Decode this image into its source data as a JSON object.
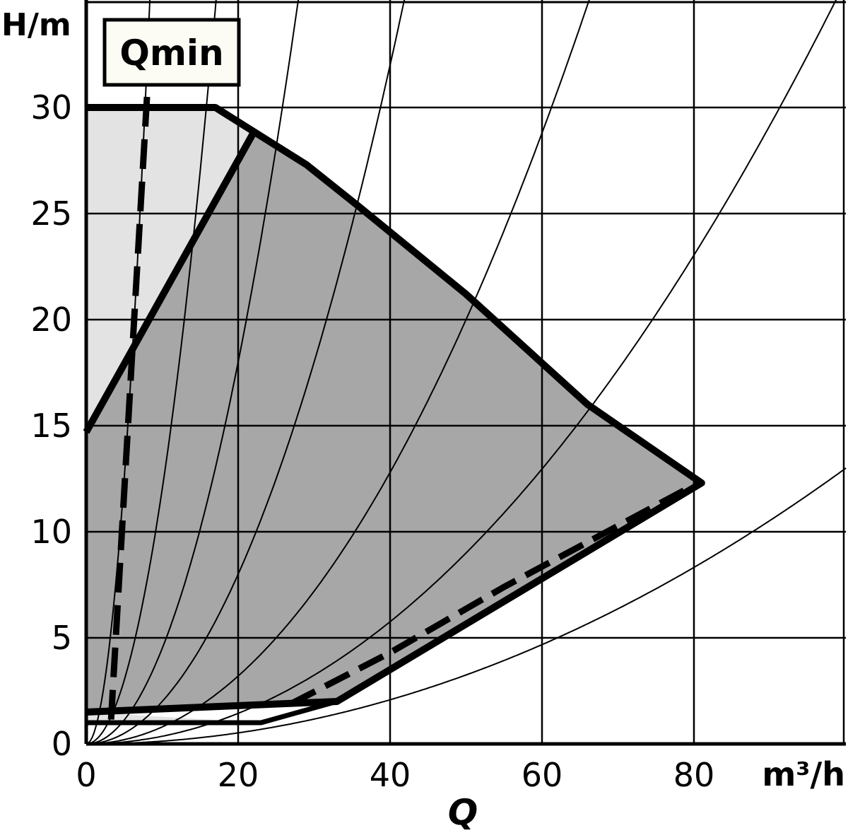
{
  "chart_data": {
    "type": "area",
    "x_label": "Q",
    "x_unit": "m³/h",
    "y_label": "H/m",
    "x_ticks": [
      "0",
      "20",
      "40",
      "60",
      "80"
    ],
    "y_ticks": [
      "0",
      "5",
      "10",
      "15",
      "20",
      "25",
      "30"
    ],
    "xlim": [
      0,
      100
    ],
    "ylim": [
      0,
      35
    ],
    "grid": true,
    "annotation": "Qmin",
    "colors": {
      "light_area": "#e3e3e3",
      "dark_area": "#a8a7a8",
      "lines": "#000000"
    },
    "light_area": [
      [
        0,
        30
      ],
      [
        17,
        30
      ],
      [
        22,
        28.8
      ],
      [
        22,
        28.8
      ],
      [
        0,
        14.7
      ],
      [
        0,
        1
      ],
      [
        23,
        1
      ],
      [
        0,
        1.5
      ]
    ],
    "dark_area": [
      [
        0,
        14.7
      ],
      [
        22,
        28.8
      ],
      [
        29,
        27.3
      ],
      [
        36,
        25.3
      ],
      [
        50,
        21.2
      ],
      [
        66,
        16
      ],
      [
        81,
        12.3
      ],
      [
        33,
        2
      ],
      [
        0,
        1.5
      ]
    ],
    "outer_outline": [
      [
        0,
        30
      ],
      [
        17,
        30
      ],
      [
        29,
        27.3
      ],
      [
        36,
        25.3
      ],
      [
        50,
        21.2
      ],
      [
        66,
        16
      ],
      [
        81,
        12.3
      ],
      [
        33,
        2
      ],
      [
        0,
        1.5
      ]
    ],
    "inner_line": [
      [
        0,
        14.7
      ],
      [
        22,
        28.8
      ]
    ],
    "bottom_small": [
      [
        0,
        1
      ],
      [
        23,
        1
      ],
      [
        33,
        2
      ]
    ],
    "dashed_min_curve": [
      [
        27,
        1.9
      ],
      [
        40,
        4.3
      ],
      [
        55,
        7.4
      ],
      [
        80,
        12.2
      ]
    ],
    "dashed_qmin": [
      [
        8,
        30.5
      ],
      [
        3.2,
        0.7
      ]
    ],
    "system_curves_k": [
      0.5,
      0.12,
      0.045,
      0.02,
      0.008,
      0.0036,
      0.0013
    ]
  }
}
